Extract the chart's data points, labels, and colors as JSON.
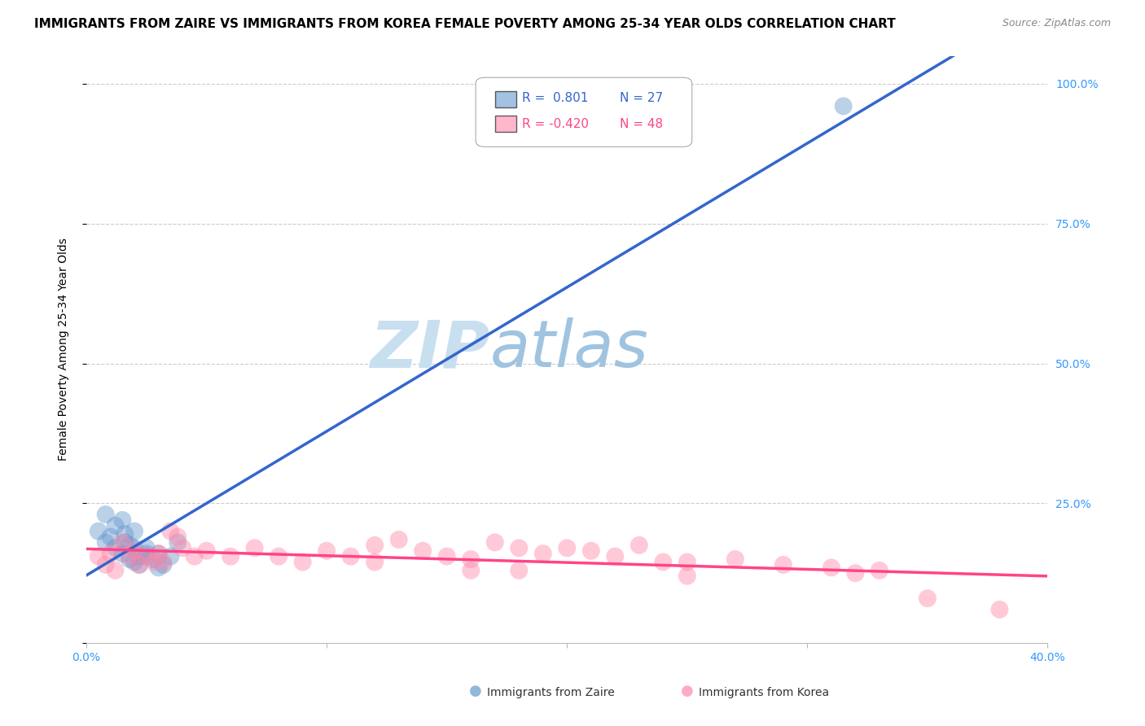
{
  "title": "IMMIGRANTS FROM ZAIRE VS IMMIGRANTS FROM KOREA FEMALE POVERTY AMONG 25-34 YEAR OLDS CORRELATION CHART",
  "source": "Source: ZipAtlas.com",
  "ylabel": "Female Poverty Among 25-34 Year Olds",
  "xlim": [
    0.0,
    0.4
  ],
  "ylim": [
    0.0,
    1.05
  ],
  "xticks": [
    0.0,
    0.1,
    0.2,
    0.3,
    0.4
  ],
  "xticklabels": [
    "0.0%",
    "",
    "",
    "",
    "40.0%"
  ],
  "ytick_positions": [
    0.0,
    0.25,
    0.5,
    0.75,
    1.0
  ],
  "ytick_labels_right": [
    "",
    "25.0%",
    "50.0%",
    "75.0%",
    "100.0%"
  ],
  "zaire_color": "#6699cc",
  "korea_color": "#ff88aa",
  "zaire_line_color": "#3366cc",
  "korea_line_color": "#ff4488",
  "legend_R_zaire": "R =  0.801",
  "legend_N_zaire": "N = 27",
  "legend_R_korea": "R = -0.420",
  "legend_N_korea": "N = 48",
  "watermark_zip": "ZIP",
  "watermark_atlas": "atlas",
  "background_color": "#ffffff",
  "grid_color": "#cccccc",
  "zaire_scatter_x": [
    0.005,
    0.008,
    0.01,
    0.012,
    0.015,
    0.016,
    0.018,
    0.02,
    0.022,
    0.025,
    0.028,
    0.03,
    0.032,
    0.035,
    0.038,
    0.015,
    0.02,
    0.025,
    0.018,
    0.022,
    0.008,
    0.012,
    0.016,
    0.03,
    0.02,
    0.025,
    0.315
  ],
  "zaire_scatter_y": [
    0.2,
    0.18,
    0.19,
    0.17,
    0.16,
    0.18,
    0.15,
    0.17,
    0.14,
    0.155,
    0.15,
    0.16,
    0.14,
    0.155,
    0.18,
    0.22,
    0.2,
    0.16,
    0.175,
    0.155,
    0.23,
    0.21,
    0.195,
    0.135,
    0.145,
    0.17,
    0.96
  ],
  "korea_scatter_x": [
    0.005,
    0.008,
    0.01,
    0.012,
    0.015,
    0.018,
    0.02,
    0.022,
    0.025,
    0.028,
    0.03,
    0.032,
    0.035,
    0.038,
    0.04,
    0.045,
    0.05,
    0.06,
    0.07,
    0.08,
    0.09,
    0.1,
    0.11,
    0.12,
    0.13,
    0.14,
    0.15,
    0.16,
    0.17,
    0.18,
    0.19,
    0.2,
    0.21,
    0.22,
    0.23,
    0.24,
    0.25,
    0.27,
    0.29,
    0.31,
    0.33,
    0.35,
    0.16,
    0.12,
    0.18,
    0.38,
    0.32,
    0.25
  ],
  "korea_scatter_y": [
    0.155,
    0.14,
    0.16,
    0.13,
    0.18,
    0.155,
    0.165,
    0.14,
    0.155,
    0.145,
    0.16,
    0.145,
    0.2,
    0.19,
    0.17,
    0.155,
    0.165,
    0.155,
    0.17,
    0.155,
    0.145,
    0.165,
    0.155,
    0.175,
    0.185,
    0.165,
    0.155,
    0.15,
    0.18,
    0.17,
    0.16,
    0.17,
    0.165,
    0.155,
    0.175,
    0.145,
    0.12,
    0.15,
    0.14,
    0.135,
    0.13,
    0.08,
    0.13,
    0.145,
    0.13,
    0.06,
    0.125,
    0.145
  ],
  "title_fontsize": 11,
  "source_fontsize": 9,
  "axis_label_fontsize": 10,
  "tick_fontsize": 10,
  "legend_fontsize": 11,
  "watermark_fontsize_zip": 58,
  "watermark_fontsize_atlas": 58
}
